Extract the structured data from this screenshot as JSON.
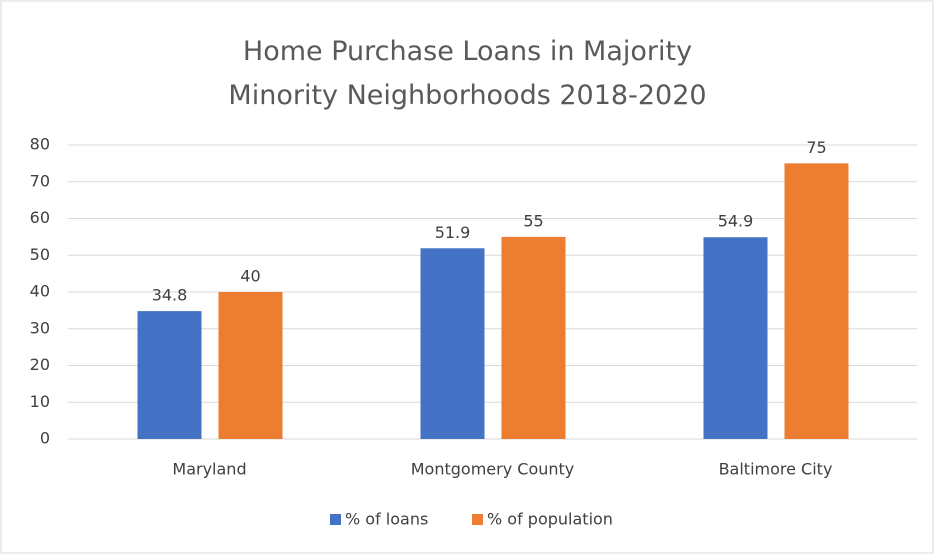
{
  "chart_data": {
    "type": "bar",
    "title": "Home Purchase Loans in Majority Minority Neighborhoods 2018-2020",
    "categories": [
      "Maryland",
      "Montgomery County",
      "Baltimore City"
    ],
    "series": [
      {
        "name": "% of loans",
        "color": "#4472c4",
        "values": [
          34.8,
          51.9,
          54.9
        ]
      },
      {
        "name": "% of population",
        "color": "#ed7d31",
        "values": [
          40,
          55,
          75
        ]
      }
    ],
    "ylim": [
      0,
      80
    ],
    "yticks": [
      0,
      10,
      20,
      30,
      40,
      50,
      60,
      70,
      80
    ],
    "grid": true,
    "legend": "bottom"
  }
}
